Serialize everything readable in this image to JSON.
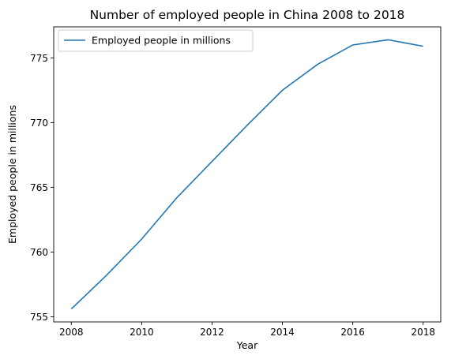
{
  "chart_data": {
    "type": "line",
    "title": "Number of employed people in China 2008 to 2018",
    "xlabel": "Year",
    "ylabel": "Employed people in millions",
    "x": [
      2008,
      2009,
      2010,
      2011,
      2012,
      2013,
      2014,
      2015,
      2016,
      2017,
      2018
    ],
    "series": [
      {
        "name": "Employed people in millions",
        "values": [
          755.6,
          758.2,
          761.0,
          764.2,
          767.0,
          769.8,
          772.5,
          774.5,
          776.0,
          776.4,
          775.9
        ],
        "color": "#1f77b4"
      }
    ],
    "xlim": [
      2007.5,
      2018.5
    ],
    "ylim": [
      754.6,
      777.4
    ],
    "xticks": [
      2008,
      2010,
      2012,
      2014,
      2016,
      2018
    ],
    "yticks": [
      755,
      760,
      765,
      770,
      775
    ],
    "grid": false,
    "legend_position": "top-left"
  }
}
